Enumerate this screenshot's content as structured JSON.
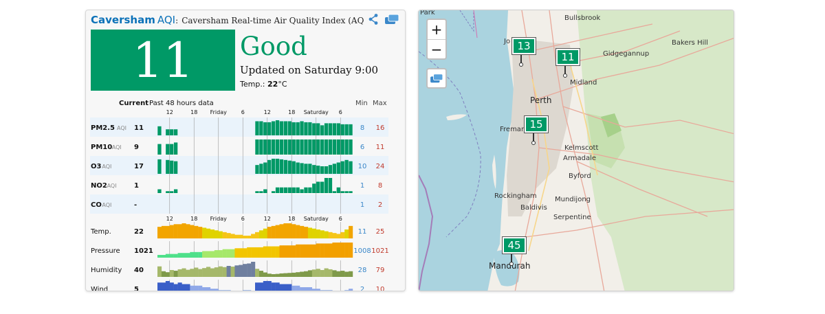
{
  "header": {
    "city": "Caversham",
    "aqi_label": "AQI",
    "colon": ":",
    "subtitle": "Caversham Real-time Air Quality Index (AQ"
  },
  "summary": {
    "aqi": "11",
    "status": "Good",
    "updated": "Updated on Saturday 9:00",
    "temp_label": "Temp.: ",
    "temp_value": "22",
    "temp_unit": "°C",
    "color": "#009966"
  },
  "table": {
    "current_label": "Current",
    "history_label": "Past 48 hours data",
    "min_label": "Min",
    "max_label": "Max",
    "time_ticks": [
      "12",
      "18",
      "Friday",
      "6",
      "12",
      "18",
      "Saturday",
      "6"
    ],
    "rows": [
      {
        "name": "PM2.5",
        "unit": "AQI",
        "current": "11",
        "min": "8",
        "max": "16",
        "values": [
          9,
          0,
          6,
          6,
          6,
          0,
          0,
          0,
          0,
          0,
          0,
          0,
          0,
          0,
          0,
          0,
          0,
          0,
          0,
          0,
          0,
          0,
          0,
          0,
          14,
          14,
          13,
          13,
          14,
          15,
          14,
          14,
          14,
          13,
          13,
          14,
          13,
          13,
          12,
          12,
          10,
          12,
          12,
          12,
          12,
          11,
          11,
          11
        ]
      },
      {
        "name": "PM10",
        "unit": "AQI",
        "current": "9",
        "min": "6",
        "max": "11",
        "values": [
          7,
          0,
          7,
          7,
          8,
          0,
          0,
          0,
          0,
          0,
          0,
          0,
          0,
          0,
          0,
          0,
          0,
          0,
          0,
          0,
          0,
          0,
          0,
          0,
          10,
          10,
          10,
          10,
          10,
          10,
          10,
          10,
          10,
          10,
          10,
          10,
          10,
          10,
          10,
          10,
          10,
          10,
          10,
          10,
          10,
          10,
          10,
          10
        ]
      },
      {
        "name": "O3",
        "unit": "AQI",
        "current": "17",
        "min": "10",
        "max": "24",
        "values": [
          23,
          0,
          22,
          21,
          20,
          0,
          0,
          0,
          0,
          0,
          0,
          0,
          0,
          0,
          0,
          0,
          0,
          0,
          0,
          0,
          0,
          0,
          0,
          0,
          14,
          16,
          18,
          22,
          24,
          24,
          23,
          22,
          21,
          20,
          18,
          17,
          16,
          16,
          14,
          13,
          12,
          12,
          14,
          16,
          18,
          20,
          22,
          20
        ]
      },
      {
        "name": "NO2",
        "unit": "AQI",
        "current": "1",
        "min": "1",
        "max": "8",
        "values": [
          2,
          0,
          1,
          1,
          2,
          0,
          0,
          0,
          0,
          0,
          0,
          0,
          0,
          0,
          0,
          0,
          0,
          0,
          0,
          0,
          0,
          0,
          0,
          0,
          1,
          1,
          2,
          0,
          1,
          3,
          3,
          3,
          3,
          3,
          3,
          2,
          3,
          3,
          5,
          6,
          6,
          8,
          8,
          1,
          3,
          1,
          1,
          1
        ]
      },
      {
        "name": "CO",
        "unit": "AQI",
        "current": "-",
        "min": "1",
        "max": "2",
        "values": []
      }
    ],
    "weather": [
      {
        "name": "Temp.",
        "current": "22",
        "min": "11",
        "max": "25"
      },
      {
        "name": "Pressure",
        "current": "1021",
        "min": "1008",
        "max": "1021"
      },
      {
        "name": "Humidity",
        "current": "40",
        "min": "28",
        "max": "79"
      },
      {
        "name": "Wind",
        "current": "5",
        "min": "2",
        "max": "10"
      }
    ]
  },
  "chart_data": {
    "type": "bar",
    "x": "Past 48 hours",
    "series": [
      {
        "name": "PM2.5",
        "values": [
          9,
          0,
          6,
          6,
          6,
          0,
          0,
          0,
          0,
          0,
          0,
          0,
          0,
          0,
          0,
          0,
          0,
          0,
          0,
          0,
          0,
          0,
          0,
          0,
          14,
          14,
          13,
          13,
          14,
          15,
          14,
          14,
          14,
          13,
          13,
          14,
          13,
          13,
          12,
          12,
          10,
          12,
          12,
          12,
          12,
          11,
          11,
          11
        ]
      },
      {
        "name": "PM10",
        "values": [
          7,
          0,
          7,
          7,
          8,
          0,
          0,
          0,
          0,
          0,
          0,
          0,
          0,
          0,
          0,
          0,
          0,
          0,
          0,
          0,
          0,
          0,
          0,
          0,
          10,
          10,
          10,
          10,
          10,
          10,
          10,
          10,
          10,
          10,
          10,
          10,
          10,
          10,
          10,
          10,
          10,
          10,
          10,
          10,
          10,
          10,
          10,
          10
        ]
      },
      {
        "name": "O3",
        "values": [
          23,
          0,
          22,
          21,
          20,
          0,
          0,
          0,
          0,
          0,
          0,
          0,
          0,
          0,
          0,
          0,
          0,
          0,
          0,
          0,
          0,
          0,
          0,
          0,
          14,
          16,
          18,
          22,
          24,
          24,
          23,
          22,
          21,
          20,
          18,
          17,
          16,
          16,
          14,
          13,
          12,
          12,
          14,
          16,
          18,
          20,
          22,
          20
        ]
      },
      {
        "name": "NO2",
        "values": [
          2,
          0,
          1,
          1,
          2,
          0,
          0,
          0,
          0,
          0,
          0,
          0,
          0,
          0,
          0,
          0,
          0,
          0,
          0,
          0,
          0,
          0,
          0,
          0,
          1,
          1,
          2,
          0,
          1,
          3,
          3,
          3,
          3,
          3,
          3,
          2,
          3,
          3,
          5,
          6,
          6,
          8,
          8,
          1,
          3,
          1,
          1,
          1
        ]
      },
      {
        "name": "Temp.",
        "values": [
          21,
          22,
          22,
          23,
          24,
          24,
          25,
          24,
          23,
          22,
          21,
          20,
          19,
          18,
          17,
          16,
          15,
          14,
          13,
          12,
          12,
          11,
          11,
          13,
          15,
          17,
          19,
          21,
          22,
          23,
          24,
          25,
          25,
          24,
          23,
          22,
          21,
          20,
          19,
          18,
          17,
          16,
          15,
          14,
          13,
          15,
          18,
          22
        ]
      },
      {
        "name": "Pressure",
        "values": [
          1008,
          1008,
          1009,
          1009,
          1009,
          1010,
          1010,
          1010,
          1011,
          1011,
          1011,
          1012,
          1012,
          1012,
          1013,
          1013,
          1014,
          1014,
          1014,
          1015,
          1015,
          1015,
          1016,
          1016,
          1016,
          1016,
          1017,
          1017,
          1017,
          1017,
          1018,
          1018,
          1018,
          1018,
          1019,
          1019,
          1019,
          1019,
          1019,
          1020,
          1020,
          1020,
          1020,
          1021,
          1021,
          1021,
          1021,
          1021
        ]
      },
      {
        "name": "Humidity",
        "values": [
          60,
          40,
          36,
          45,
          42,
          48,
          52,
          46,
          50,
          55,
          49,
          53,
          58,
          52,
          56,
          60,
          57,
          62,
          59,
          64,
          66,
          70,
          72,
          79,
          50,
          42,
          35,
          30,
          28,
          29,
          31,
          32,
          33,
          34,
          36,
          38,
          40,
          44,
          47,
          50,
          45,
          52,
          48,
          44,
          40,
          42,
          38,
          40
        ]
      },
      {
        "name": "Wind",
        "values": [
          9,
          9,
          10,
          9,
          8,
          9,
          8,
          8,
          7,
          7,
          7,
          6,
          6,
          5,
          5,
          4,
          4,
          4,
          3,
          3,
          3,
          4,
          4,
          3,
          9,
          9,
          10,
          10,
          9,
          9,
          8,
          8,
          8,
          7,
          7,
          6,
          6,
          6,
          5,
          5,
          4,
          4,
          4,
          3,
          2,
          3,
          4,
          5
        ]
      }
    ],
    "time_labels": [
      "12",
      "18",
      "Friday",
      "6",
      "12",
      "18",
      "Saturday",
      "6"
    ]
  },
  "map": {
    "zoom_in": "+",
    "zoom_out": "−",
    "markers": [
      {
        "value": "13"
      },
      {
        "value": "11"
      },
      {
        "value": "15"
      },
      {
        "value": "45"
      }
    ],
    "places": [
      "Bullsbrook",
      "Bakers Hill",
      "Gidgegannup",
      "Park",
      "Jo",
      "Midland",
      "Perth",
      "Freman",
      "Kelmscott",
      "Armadale",
      "Byford",
      "Rockingham",
      "Baldivis",
      "Mundijong",
      "Serpentine",
      "Mandurah"
    ]
  },
  "colors": {
    "good": "#009966",
    "min": "#3a87c9",
    "max": "#c0392b",
    "brand": "#0b71b8"
  }
}
